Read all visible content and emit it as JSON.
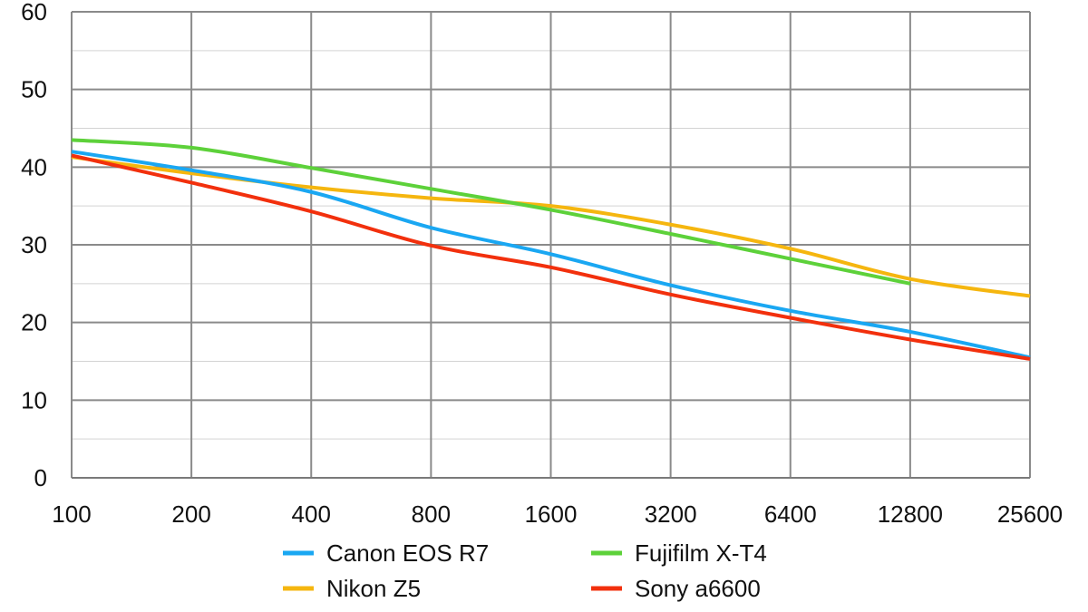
{
  "chart_data": {
    "type": "line",
    "title": "",
    "xlabel": "",
    "ylabel": "",
    "x": [
      "100",
      "200",
      "400",
      "800",
      "1600",
      "3200",
      "6400",
      "12800",
      "25600"
    ],
    "ylim": [
      0,
      60
    ],
    "yticks": [
      0,
      10,
      20,
      30,
      40,
      50,
      60
    ],
    "grid": true,
    "legend_position": "bottom",
    "series": [
      {
        "name": "Canon EOS R7",
        "color": "#1aa7f2",
        "values": [
          42.0,
          39.6,
          36.8,
          32.2,
          28.8,
          24.8,
          21.5,
          18.8,
          15.5
        ]
      },
      {
        "name": "Fujifilm X-T4",
        "color": "#5dd13a",
        "values": [
          43.5,
          42.5,
          39.9,
          37.2,
          34.5,
          31.4,
          28.2,
          25.0,
          null
        ]
      },
      {
        "name": "Nikon Z5",
        "color": "#f5b60f",
        "values": [
          41.3,
          39.2,
          37.4,
          36.0,
          35.0,
          32.6,
          29.5,
          25.6,
          23.4
        ]
      },
      {
        "name": "Sony a6600",
        "color": "#f2300d",
        "values": [
          41.5,
          38.0,
          34.3,
          29.9,
          27.1,
          23.6,
          20.6,
          17.8,
          15.3
        ]
      }
    ]
  }
}
